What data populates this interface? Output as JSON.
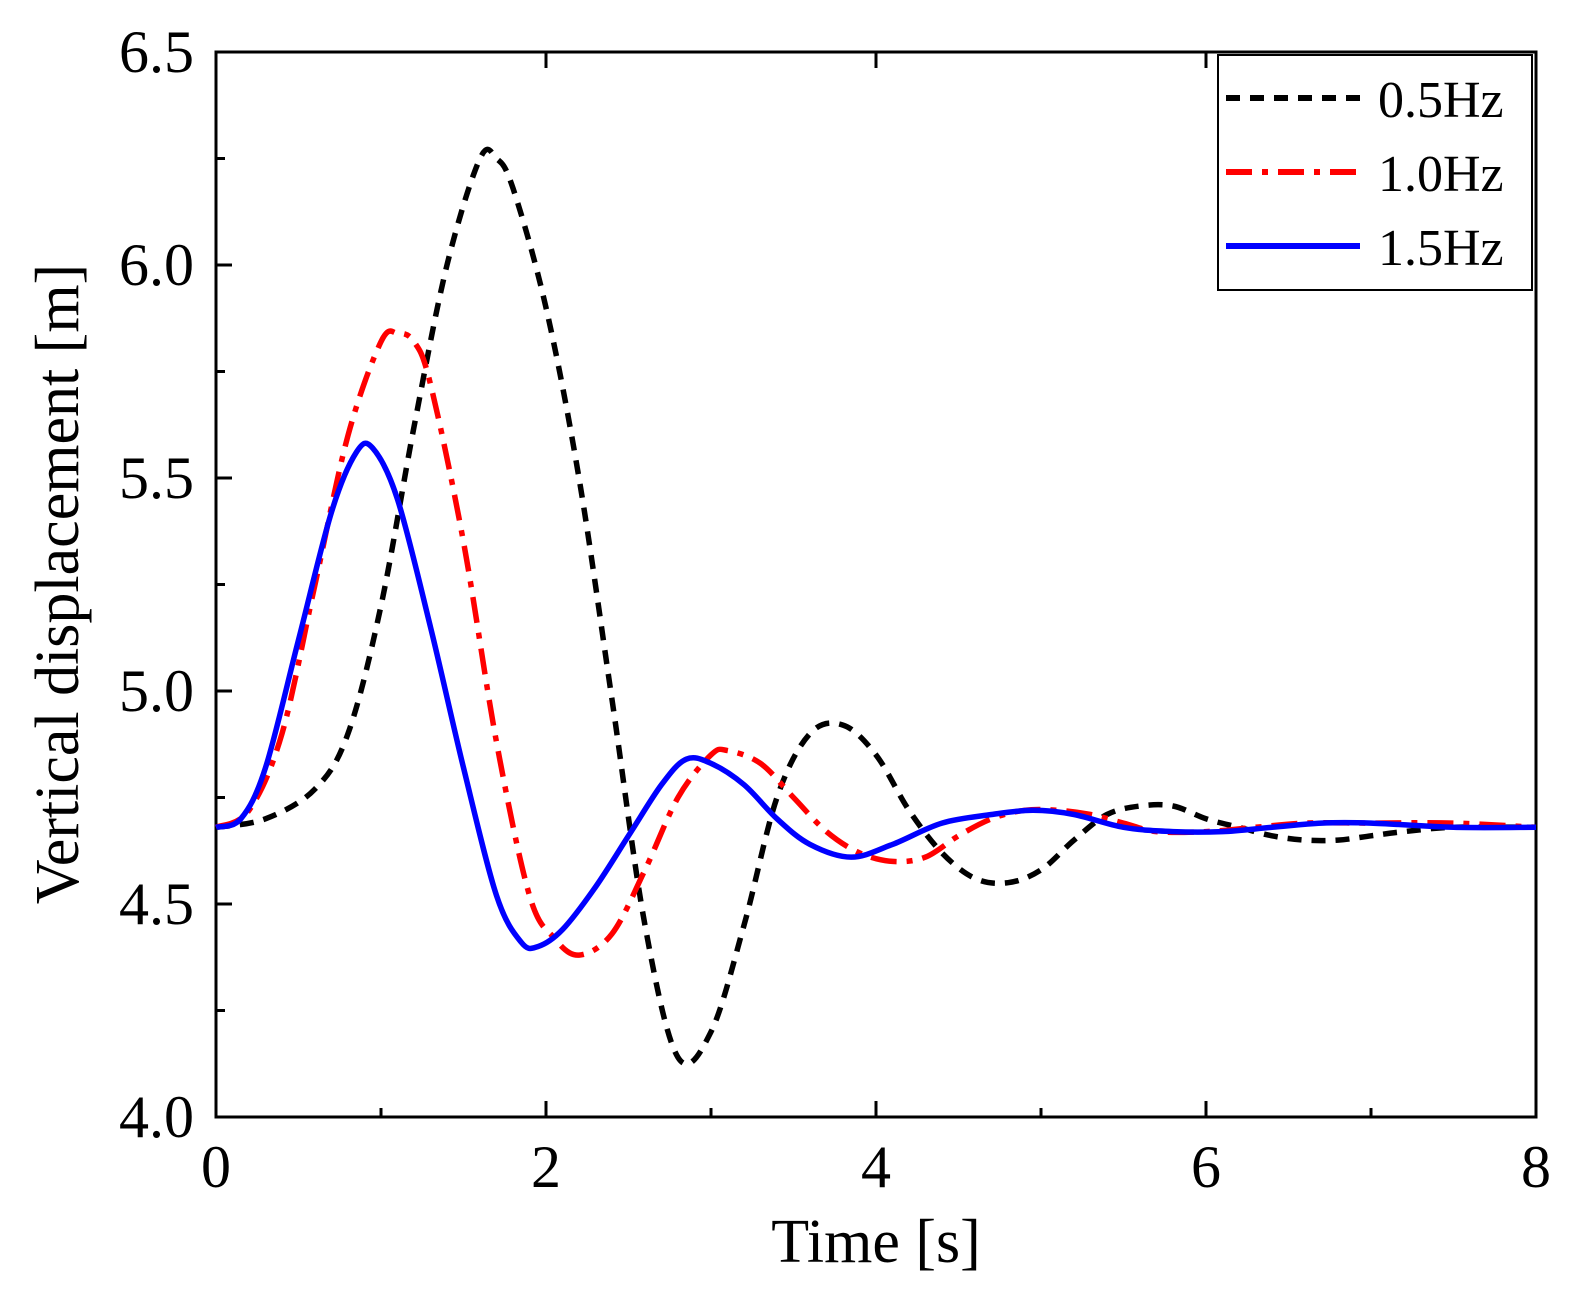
{
  "chart_data": {
    "type": "line",
    "title": "",
    "xlabel": "Time [s]",
    "ylabel": "Vertical displacement [m]",
    "xlim": [
      0,
      8
    ],
    "ylim": [
      4.0,
      6.5
    ],
    "grid": false,
    "legend_position": "top-right",
    "xticks": [
      "0",
      "2",
      "4",
      "6",
      "8"
    ],
    "yticks": [
      "4.0",
      "4.5",
      "5.0",
      "5.5",
      "6.0",
      "6.5"
    ],
    "series": [
      {
        "name": "0.5Hz",
        "color": "#000000",
        "style": "dashed",
        "x": [
          0,
          0.3,
          0.6,
          0.8,
          1.0,
          1.2,
          1.4,
          1.6,
          1.7,
          1.8,
          2.0,
          2.2,
          2.4,
          2.6,
          2.8,
          3.0,
          3.2,
          3.4,
          3.6,
          3.8,
          4.0,
          4.2,
          4.4,
          4.6,
          4.8,
          5.0,
          5.2,
          5.4,
          5.6,
          5.8,
          6.0,
          6.2,
          6.4,
          6.6,
          6.8,
          7.0,
          7.2,
          7.5,
          8.0
        ],
        "y": [
          4.68,
          4.7,
          4.77,
          4.9,
          5.2,
          5.62,
          6.0,
          6.25,
          6.25,
          6.18,
          5.9,
          5.5,
          4.98,
          4.45,
          4.14,
          4.2,
          4.45,
          4.75,
          4.9,
          4.92,
          4.85,
          4.72,
          4.62,
          4.56,
          4.55,
          4.58,
          4.65,
          4.71,
          4.73,
          4.73,
          4.7,
          4.68,
          4.66,
          4.65,
          4.65,
          4.66,
          4.67,
          4.68,
          4.68
        ]
      },
      {
        "name": "1.0Hz",
        "color": "#ff0000",
        "style": "dashdot",
        "x": [
          0,
          0.2,
          0.4,
          0.6,
          0.8,
          1.0,
          1.1,
          1.2,
          1.3,
          1.5,
          1.7,
          1.9,
          2.05,
          2.2,
          2.4,
          2.6,
          2.8,
          3.0,
          3.1,
          3.3,
          3.5,
          3.7,
          3.9,
          4.1,
          4.3,
          4.5,
          4.7,
          4.9,
          5.1,
          5.3,
          5.5,
          5.7,
          6.0,
          6.3,
          6.6,
          7.0,
          7.5,
          8.0
        ],
        "y": [
          4.68,
          4.72,
          4.9,
          5.25,
          5.6,
          5.82,
          5.84,
          5.82,
          5.72,
          5.35,
          4.88,
          4.52,
          4.42,
          4.38,
          4.43,
          4.58,
          4.75,
          4.85,
          4.86,
          4.83,
          4.75,
          4.67,
          4.62,
          4.6,
          4.61,
          4.66,
          4.7,
          4.72,
          4.72,
          4.71,
          4.69,
          4.67,
          4.67,
          4.68,
          4.69,
          4.69,
          4.69,
          4.68
        ]
      },
      {
        "name": "1.5Hz",
        "color": "#0000ff",
        "style": "solid",
        "x": [
          0,
          0.15,
          0.3,
          0.5,
          0.7,
          0.85,
          0.95,
          1.1,
          1.3,
          1.5,
          1.7,
          1.85,
          1.95,
          2.1,
          2.3,
          2.5,
          2.7,
          2.85,
          3.0,
          3.2,
          3.4,
          3.6,
          3.85,
          4.1,
          4.4,
          4.7,
          4.95,
          5.2,
          5.5,
          5.8,
          6.1,
          6.4,
          6.7,
          7.0,
          7.5,
          8.0
        ],
        "y": [
          4.68,
          4.7,
          4.82,
          5.12,
          5.42,
          5.56,
          5.57,
          5.45,
          5.15,
          4.82,
          4.52,
          4.41,
          4.4,
          4.44,
          4.54,
          4.66,
          4.78,
          4.84,
          4.83,
          4.78,
          4.7,
          4.64,
          4.61,
          4.64,
          4.69,
          4.71,
          4.72,
          4.71,
          4.68,
          4.67,
          4.67,
          4.68,
          4.69,
          4.69,
          4.68,
          4.68
        ]
      }
    ]
  }
}
